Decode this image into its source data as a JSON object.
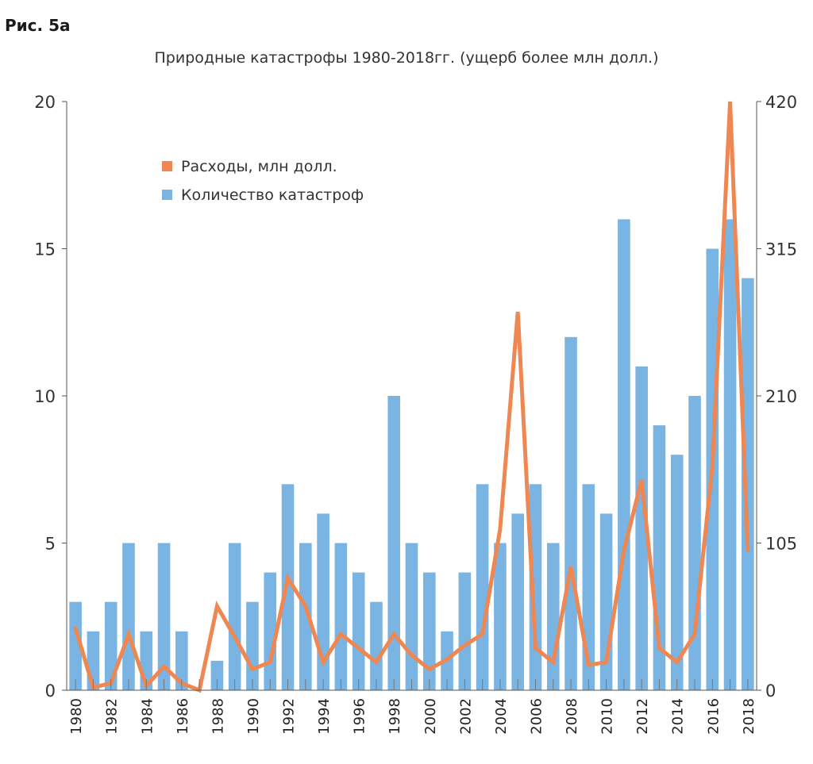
{
  "figure_label": "Рис. 5а",
  "chart_data": {
    "type": "bar",
    "title": "Природные катастрофы 1980-2018гг. (ущерб более млн долл.)",
    "x": [
      1980,
      1981,
      1982,
      1983,
      1984,
      1985,
      1986,
      1987,
      1988,
      1989,
      1990,
      1991,
      1992,
      1993,
      1994,
      1995,
      1996,
      1997,
      1998,
      1999,
      2000,
      2001,
      2002,
      2003,
      2004,
      2005,
      2006,
      2007,
      2008,
      2009,
      2010,
      2011,
      2012,
      2013,
      2014,
      2015,
      2016,
      2017,
      2018
    ],
    "x_tick_labels": [
      "1980",
      "1982",
      "1984",
      "1986",
      "1988",
      "1990",
      "1992",
      "1994",
      "1996",
      "1998",
      "2000",
      "2002",
      "2004",
      "2006",
      "2008",
      "2010",
      "2012",
      "2014",
      "2016",
      "2018"
    ],
    "y_left": {
      "ticks": [
        "0",
        "5",
        "10",
        "15",
        "20"
      ],
      "lim": [
        0,
        20
      ]
    },
    "y_right": {
      "ticks": [
        "0",
        "105",
        "210",
        "315",
        "420"
      ],
      "lim": [
        0,
        420
      ]
    },
    "series": [
      {
        "name": "Количество катастроф",
        "type": "bar",
        "axis": "left",
        "color": "#79b4e2",
        "values": [
          3,
          2,
          3,
          5,
          2,
          5,
          2,
          0,
          1,
          5,
          3,
          4,
          7,
          5,
          6,
          5,
          4,
          3,
          10,
          5,
          4,
          2,
          4,
          7,
          5,
          6,
          7,
          5,
          12,
          7,
          6,
          16,
          11,
          9,
          8,
          10,
          15,
          16,
          14
        ]
      },
      {
        "name": "Расходы, млн долл.",
        "type": "line",
        "axis": "right",
        "color": "#ef8753",
        "values": [
          44,
          2,
          5,
          40,
          3,
          17,
          5,
          0,
          60,
          38,
          15,
          20,
          80,
          60,
          20,
          40,
          30,
          20,
          40,
          25,
          15,
          22,
          32,
          40,
          115,
          270,
          30,
          20,
          88,
          18,
          20,
          100,
          150,
          30,
          20,
          40,
          160,
          420,
          100
        ]
      }
    ],
    "legend": {
      "placement": "top-left"
    },
    "grid": false
  }
}
